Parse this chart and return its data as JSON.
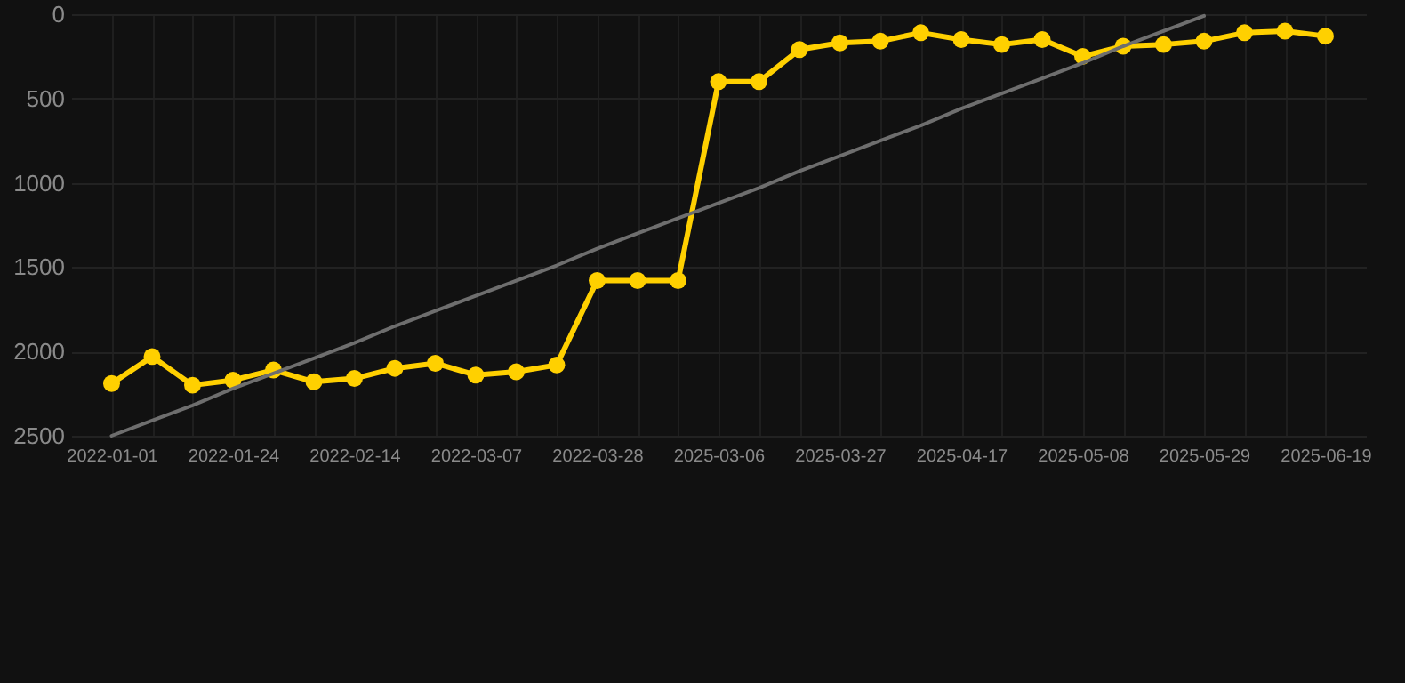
{
  "chart_data": {
    "type": "line",
    "categories": [
      "2022-01-01",
      null,
      null,
      "2022-01-24",
      null,
      null,
      "2022-02-14",
      null,
      null,
      "2022-03-07",
      null,
      null,
      "2022-03-28",
      null,
      null,
      "2025-03-06",
      null,
      null,
      "2025-03-27",
      null,
      null,
      "2025-04-17",
      null,
      null,
      "2025-05-08",
      null,
      null,
      "2025-05-29",
      null,
      null,
      "2025-06-19"
    ],
    "series": [
      {
        "color": "#ffd000",
        "marker": "circle",
        "values": [
          2190,
          2030,
          2200,
          2170,
          2110,
          2180,
          2160,
          2100,
          2070,
          2140,
          2120,
          2080,
          1580,
          1580,
          1580,
          400,
          400,
          210,
          170,
          160,
          110,
          150,
          180,
          150,
          250,
          190,
          180,
          160,
          110,
          100,
          130
        ]
      },
      {
        "color": "#6e6e6e",
        "marker": "none",
        "values": [
          2500,
          2410,
          2320,
          2220,
          2130,
          2040,
          1950,
          1850,
          1760,
          1670,
          1580,
          1490,
          1390,
          1300,
          1210,
          1120,
          1030,
          930,
          840,
          750,
          660,
          560,
          470,
          380,
          290,
          190,
          100,
          10,
          null,
          null,
          null
        ]
      }
    ],
    "ylim": [
      2500,
      0
    ],
    "yticks": [
      0,
      500,
      1000,
      1500,
      2000,
      2500
    ],
    "grid": true
  }
}
